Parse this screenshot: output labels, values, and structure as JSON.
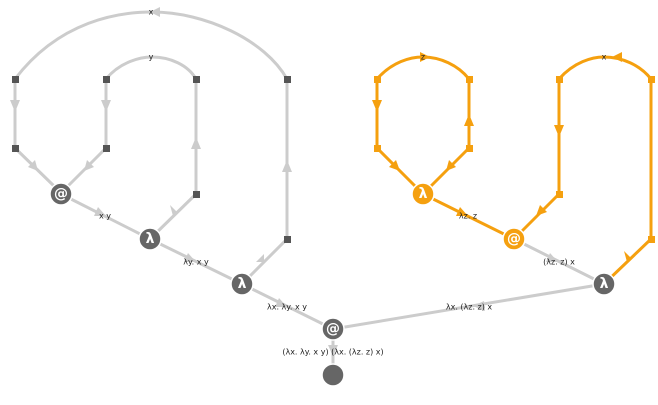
{
  "colors": {
    "inactive": "#cccccc",
    "active": "#f5a00f",
    "node": "#666666"
  },
  "nodes": {
    "app_left_glyph": "@",
    "lam_y_glyph": "λ",
    "lam_x_glyph": "λ",
    "app_root_glyph": "@",
    "lam_z_glyph": "λ",
    "app_right_glyph": "@",
    "lam_x2_glyph": "λ"
  },
  "labels": {
    "var_x_top": "x",
    "var_y_top": "y",
    "var_z_top": "z",
    "var_x_right_top": "x",
    "app_x_y": "x y",
    "lam_y_x_y": "λy. x y",
    "lam_x_lam_y_x_y": "λx. λy. x y",
    "root_term": "(λx. λy. x y) (λx. (λz. z) x)",
    "lam_z_z": "λz. z",
    "app_lam_z_z_x": "(λz. z) x",
    "lam_x_lam_z_z_x": "λx. (λz. z) x"
  }
}
